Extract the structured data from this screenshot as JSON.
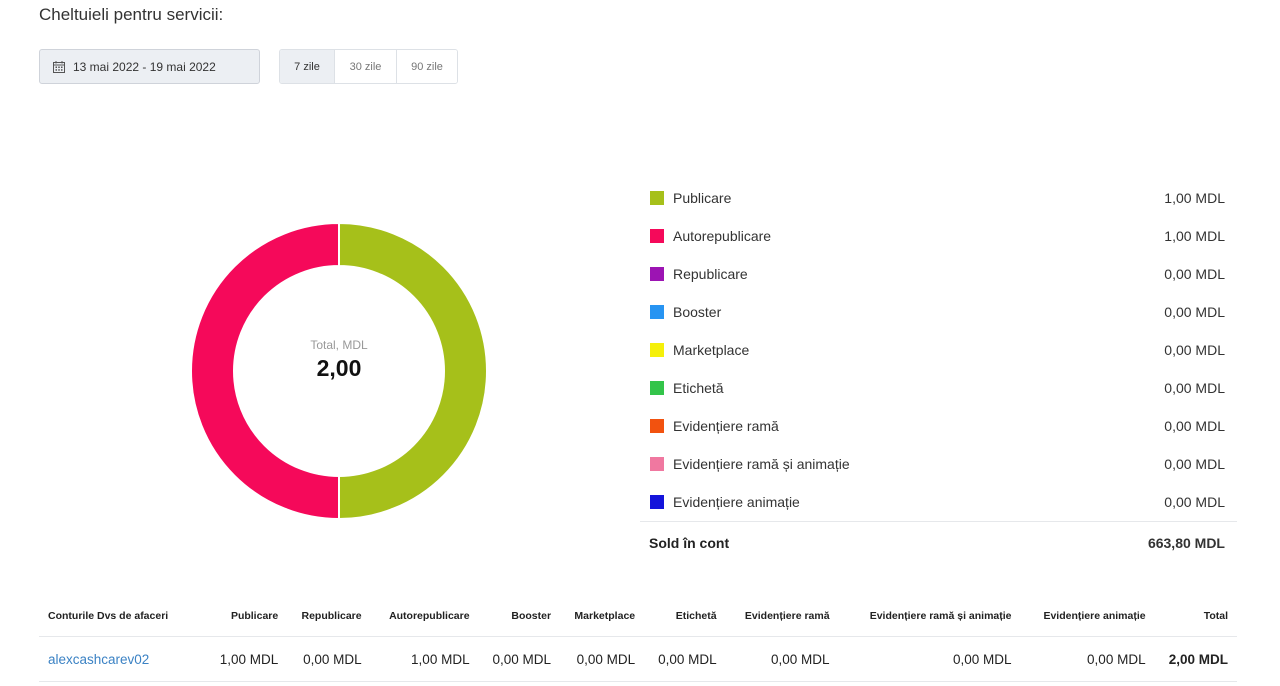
{
  "header": {
    "title": "Cheltuieli pentru servicii:"
  },
  "filters": {
    "date_range": "13 mai 2022 - 19 mai 2022",
    "ranges": [
      {
        "label": "7 zile",
        "active": true
      },
      {
        "label": "30 zile",
        "active": false
      },
      {
        "label": "90 zile",
        "active": false
      }
    ]
  },
  "donut": {
    "subtitle": "Total, MDL",
    "total": "2,00"
  },
  "chart_data": {
    "type": "pie",
    "style": "donut",
    "center_label": "Total, MDL",
    "center_value": "2,00",
    "categories": [
      "Publicare",
      "Autorepublicare",
      "Republicare",
      "Booster",
      "Marketplace",
      "Etichetă",
      "Evidențiere ramă",
      "Evidențiere ramă și animație",
      "Evidențiere animație"
    ],
    "values": [
      1.0,
      1.0,
      0.0,
      0.0,
      0.0,
      0.0,
      0.0,
      0.0,
      0.0
    ],
    "colors": [
      "#a6c01a",
      "#f5095a",
      "#9c14b3",
      "#2794f2",
      "#f5f00a",
      "#33c44a",
      "#f2520f",
      "#f078a0",
      "#1414db"
    ],
    "legend": "right"
  },
  "legend": {
    "items": [
      {
        "label": "Publicare",
        "value": "1,00 MDL",
        "color": "#a6c01a"
      },
      {
        "label": "Autorepublicare",
        "value": "1,00 MDL",
        "color": "#f5095a"
      },
      {
        "label": "Republicare",
        "value": "0,00 MDL",
        "color": "#9c14b3"
      },
      {
        "label": "Booster",
        "value": "0,00 MDL",
        "color": "#2794f2"
      },
      {
        "label": "Marketplace",
        "value": "0,00 MDL",
        "color": "#f5f00a"
      },
      {
        "label": "Etichetă",
        "value": "0,00 MDL",
        "color": "#33c44a"
      },
      {
        "label": "Evidențiere ramă",
        "value": "0,00 MDL",
        "color": "#f2520f"
      },
      {
        "label": "Evidențiere ramă și animație",
        "value": "0,00 MDL",
        "color": "#f078a0"
      },
      {
        "label": "Evidențiere animație",
        "value": "0,00 MDL",
        "color": "#1414db"
      }
    ],
    "balance_label": "Sold în cont",
    "balance_value": "663,80 MDL"
  },
  "table": {
    "columns": [
      "Conturile Dvs de afaceri",
      "Publicare",
      "Republicare",
      "Autorepublicare",
      "Booster",
      "Marketplace",
      "Etichetă",
      "Evidențiere ramă",
      "Evidențiere ramă și animație",
      "Evidențiere animație",
      "Total"
    ],
    "rows": [
      [
        "alexcashcarev02",
        "1,00 MDL",
        "0,00 MDL",
        "1,00 MDL",
        "0,00 MDL",
        "0,00 MDL",
        "0,00 MDL",
        "0,00 MDL",
        "0,00 MDL",
        "0,00 MDL",
        "2,00 MDL"
      ]
    ]
  }
}
